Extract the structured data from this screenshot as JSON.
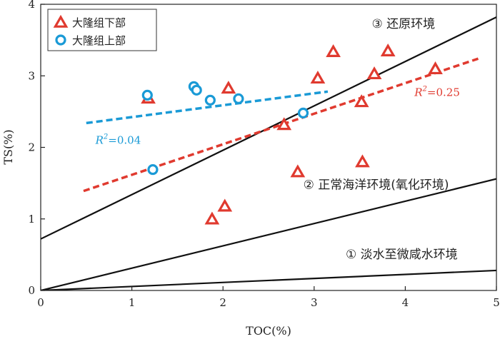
{
  "chart_data": {
    "type": "scatter",
    "title": "",
    "xlabel": "TOC(%)",
    "ylabel": "TS(%)",
    "xlim": [
      0,
      5
    ],
    "ylim": [
      0,
      4
    ],
    "xticks": [
      0,
      1,
      2,
      3,
      4,
      5
    ],
    "yticks": [
      0,
      1,
      2,
      3,
      4
    ],
    "grid": false,
    "legend": "top-left",
    "series": [
      {
        "name": "大隆组下部",
        "marker": "triangle-open",
        "color": "#e03a2f",
        "points": [
          [
            1.18,
            2.68
          ],
          [
            1.88,
            0.99
          ],
          [
            2.02,
            1.17
          ],
          [
            2.06,
            2.82
          ],
          [
            2.67,
            2.31
          ],
          [
            2.82,
            1.65
          ],
          [
            3.04,
            2.96
          ],
          [
            3.21,
            3.33
          ],
          [
            3.52,
            2.63
          ],
          [
            3.53,
            1.79
          ],
          [
            3.66,
            3.02
          ],
          [
            3.81,
            3.34
          ],
          [
            4.33,
            3.09
          ]
        ]
      },
      {
        "name": "大隆组上部",
        "marker": "circle-open",
        "color": "#1a9ad6",
        "points": [
          [
            1.17,
            2.73
          ],
          [
            1.23,
            1.69
          ],
          [
            1.68,
            2.85
          ],
          [
            1.71,
            2.8
          ],
          [
            1.86,
            2.66
          ],
          [
            2.17,
            2.68
          ],
          [
            2.88,
            2.48
          ]
        ]
      }
    ],
    "fit_lines": [
      {
        "series": "大隆组下部",
        "label": "R²=0.25",
        "color": "#e03a2f",
        "x": [
          0.47,
          4.8
        ],
        "y": [
          1.39,
          3.24
        ]
      },
      {
        "series": "大隆组上部",
        "label": "R²=0.04",
        "color": "#1a9ad6",
        "x": [
          0.5,
          3.15
        ],
        "y": [
          2.34,
          2.78
        ]
      }
    ],
    "boundary_lines": [
      {
        "x": [
          0,
          5
        ],
        "y": [
          0.72,
          3.82
        ]
      },
      {
        "x": [
          0,
          5
        ],
        "y": [
          0,
          1.56
        ]
      },
      {
        "x": [
          0,
          5
        ],
        "y": [
          0,
          0.28
        ]
      }
    ],
    "annotations": [
      {
        "text": "③ 还原环境",
        "x": 3.98,
        "y": 3.67
      },
      {
        "text": "② 正常海洋环境(氧化环境)",
        "x": 3.68,
        "y": 1.42
      },
      {
        "text": "① 淡水至微咸水环境",
        "x": 3.96,
        "y": 0.45
      }
    ]
  }
}
